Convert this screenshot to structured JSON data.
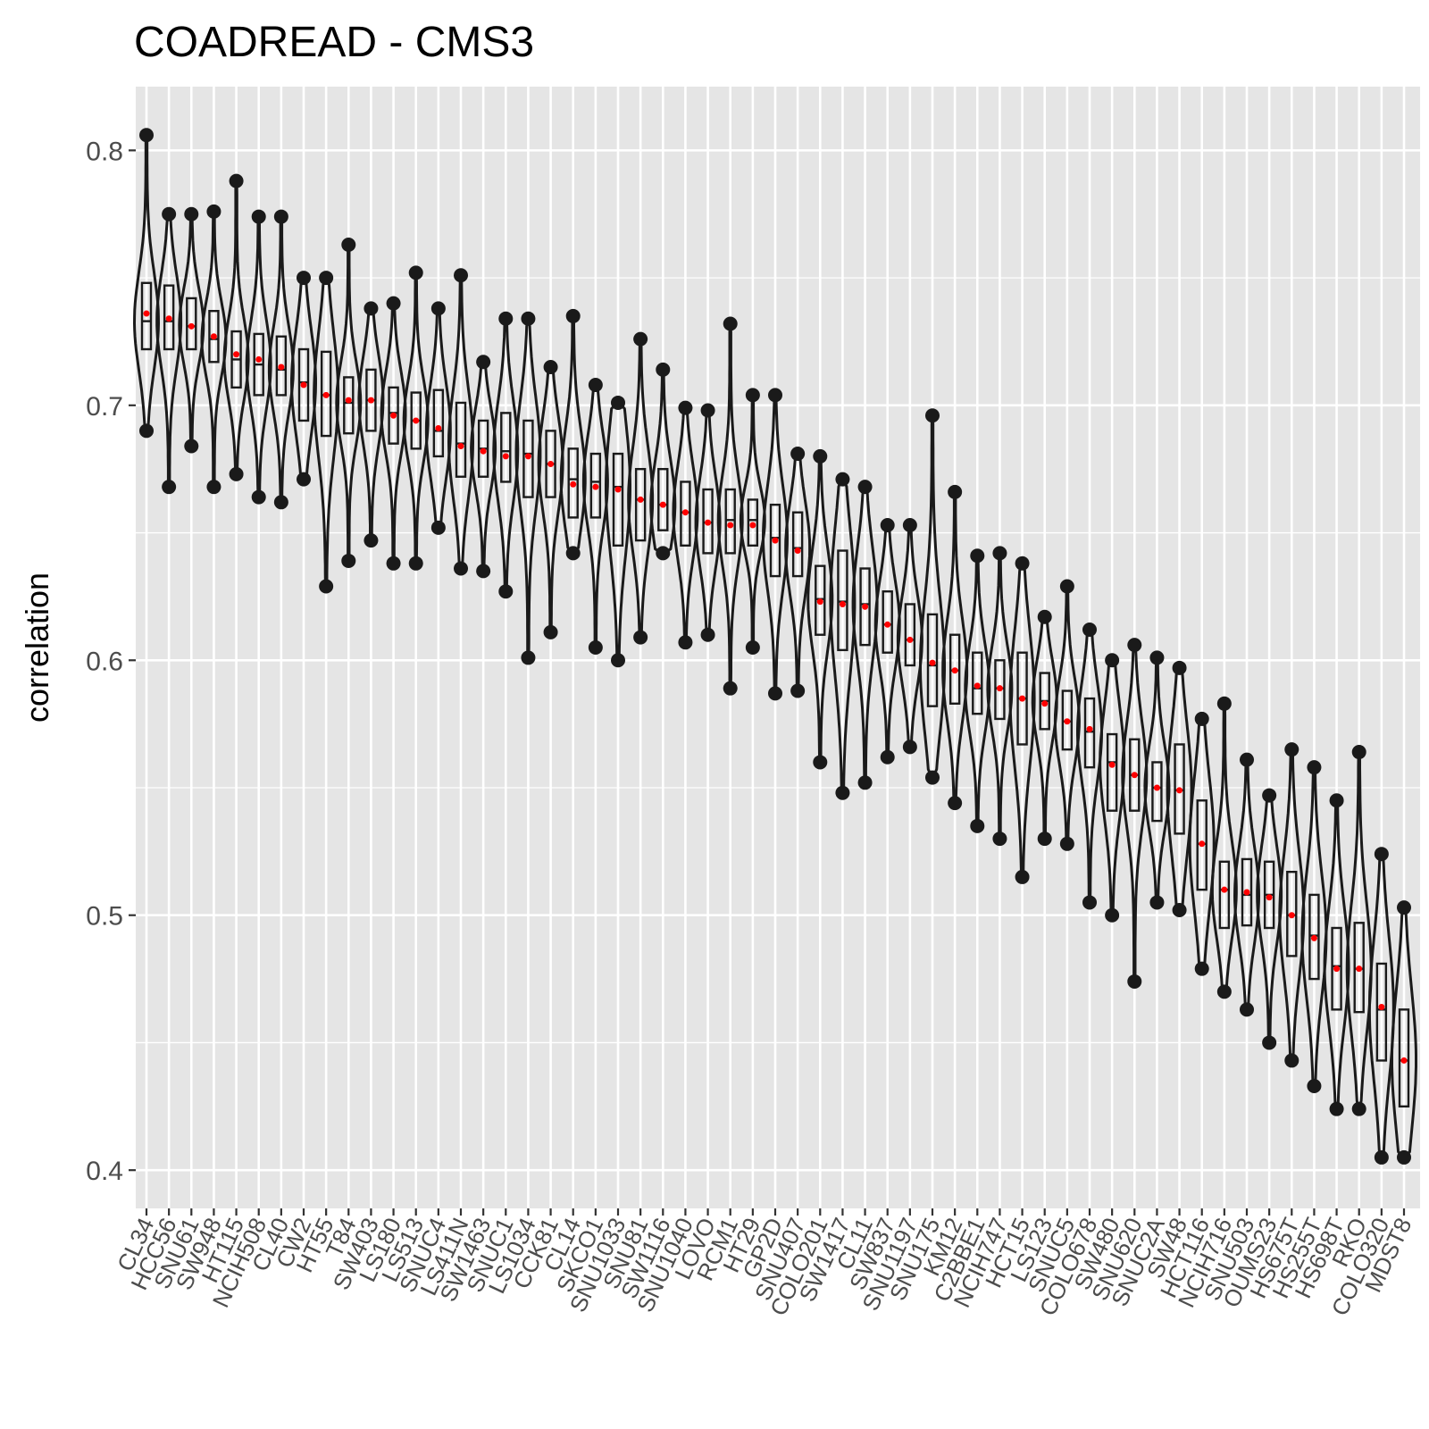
{
  "chart_data": {
    "type": "violin",
    "title": "COADREAD - CMS3",
    "xlabel": "",
    "ylabel": "correlation",
    "ylim": [
      0.385,
      0.825
    ],
    "yticks": [
      0.4,
      0.5,
      0.6,
      0.7,
      0.8
    ],
    "ytick_labels": [
      "0.4",
      "0.5",
      "0.6",
      "0.7",
      "0.8"
    ],
    "grid": true,
    "legend": "none",
    "colors": {
      "panel": "#e5e5e5",
      "grid": "#ffffff",
      "violin": "#1a1a1a",
      "mean": "#ff0000",
      "text": "#4d4d4d"
    },
    "categories": [
      "CL34",
      "HCC56",
      "SNU61",
      "SW948",
      "HT115",
      "NCIH508",
      "CL40",
      "CW2",
      "HT55",
      "T84",
      "SW403",
      "LS180",
      "LS513",
      "SNUC4",
      "LS411N",
      "SW1463",
      "SNUC1",
      "LS1034",
      "CCK81",
      "CL14",
      "SKCO1",
      "SNU1033",
      "SNU81",
      "SW1116",
      "SNU1040",
      "LOVO",
      "RCM1",
      "HT29",
      "GP2D",
      "SNU407",
      "COLO201",
      "SW1417",
      "CL11",
      "SW837",
      "SNU1197",
      "SNU175",
      "KM12",
      "C2BBE1",
      "NCIH747",
      "HCT15",
      "LS123",
      "SNUC5",
      "COLO678",
      "SW480",
      "SNU620",
      "SNUC2A",
      "SW48",
      "HCT116",
      "NCIH716",
      "SNU503",
      "OUMS23",
      "HS675T",
      "HS255T",
      "HS698T",
      "RKO",
      "COLO320",
      "MDST8"
    ],
    "series": [
      {
        "name": "mean",
        "values": [
          0.736,
          0.734,
          0.731,
          0.727,
          0.72,
          0.718,
          0.715,
          0.708,
          0.704,
          0.702,
          0.702,
          0.696,
          0.694,
          0.691,
          0.684,
          0.682,
          0.68,
          0.68,
          0.677,
          0.669,
          0.668,
          0.667,
          0.663,
          0.661,
          0.658,
          0.654,
          0.653,
          0.653,
          0.647,
          0.643,
          0.623,
          0.622,
          0.621,
          0.614,
          0.608,
          0.599,
          0.596,
          0.59,
          0.589,
          0.585,
          0.583,
          0.576,
          0.573,
          0.559,
          0.555,
          0.55,
          0.549,
          0.528,
          0.51,
          0.509,
          0.507,
          0.5,
          0.491,
          0.479,
          0.479,
          0.464,
          0.443
        ]
      },
      {
        "name": "min",
        "values": [
          0.69,
          0.668,
          0.684,
          0.668,
          0.673,
          0.664,
          0.662,
          0.671,
          0.629,
          0.639,
          0.647,
          0.638,
          0.638,
          0.652,
          0.636,
          0.635,
          0.627,
          0.601,
          0.611,
          0.642,
          0.605,
          0.6,
          0.609,
          0.642,
          0.607,
          0.61,
          0.589,
          0.605,
          0.587,
          0.588,
          0.56,
          0.548,
          0.552,
          0.562,
          0.566,
          0.554,
          0.544,
          0.535,
          0.53,
          0.515,
          0.53,
          0.528,
          0.505,
          0.5,
          0.474,
          0.505,
          0.502,
          0.479,
          0.47,
          0.463,
          0.45,
          0.443,
          0.433,
          0.424,
          0.424,
          0.405,
          0.405
        ]
      },
      {
        "name": "max",
        "values": [
          0.806,
          0.775,
          0.775,
          0.776,
          0.788,
          0.774,
          0.774,
          0.75,
          0.75,
          0.763,
          0.738,
          0.74,
          0.752,
          0.738,
          0.751,
          0.717,
          0.734,
          0.734,
          0.715,
          0.735,
          0.708,
          0.701,
          0.726,
          0.714,
          0.699,
          0.698,
          0.732,
          0.704,
          0.704,
          0.681,
          0.68,
          0.671,
          0.668,
          0.653,
          0.653,
          0.696,
          0.666,
          0.641,
          0.642,
          0.638,
          0.617,
          0.629,
          0.612,
          0.6,
          0.606,
          0.601,
          0.597,
          0.577,
          0.583,
          0.561,
          0.547,
          0.565,
          0.558,
          0.545,
          0.564,
          0.524,
          0.503
        ]
      },
      {
        "name": "q1",
        "values": [
          0.722,
          0.722,
          0.722,
          0.717,
          0.707,
          0.704,
          0.704,
          0.694,
          0.688,
          0.689,
          0.69,
          0.685,
          0.683,
          0.68,
          0.672,
          0.672,
          0.67,
          0.664,
          0.664,
          0.656,
          0.656,
          0.645,
          0.647,
          0.651,
          0.645,
          0.642,
          0.642,
          0.645,
          0.633,
          0.633,
          0.61,
          0.604,
          0.606,
          0.603,
          0.598,
          0.582,
          0.583,
          0.579,
          0.577,
          0.567,
          0.573,
          0.565,
          0.558,
          0.541,
          0.541,
          0.537,
          0.532,
          0.51,
          0.495,
          0.496,
          0.495,
          0.484,
          0.475,
          0.463,
          0.462,
          0.443,
          0.425
        ]
      },
      {
        "name": "median",
        "values": [
          0.733,
          0.733,
          0.731,
          0.726,
          0.718,
          0.716,
          0.714,
          0.709,
          0.704,
          0.701,
          0.702,
          0.697,
          0.694,
          0.69,
          0.685,
          0.683,
          0.682,
          0.681,
          0.677,
          0.671,
          0.67,
          0.668,
          0.663,
          0.661,
          0.658,
          0.654,
          0.655,
          0.655,
          0.648,
          0.644,
          0.624,
          0.623,
          0.622,
          0.614,
          0.608,
          0.598,
          0.596,
          0.589,
          0.589,
          0.585,
          0.584,
          0.576,
          0.572,
          0.56,
          0.555,
          0.55,
          0.549,
          0.528,
          0.51,
          0.508,
          0.508,
          0.5,
          0.492,
          0.48,
          0.479,
          0.463,
          0.443
        ]
      },
      {
        "name": "q3",
        "values": [
          0.748,
          0.747,
          0.742,
          0.737,
          0.729,
          0.728,
          0.727,
          0.722,
          0.721,
          0.711,
          0.714,
          0.707,
          0.705,
          0.706,
          0.701,
          0.694,
          0.697,
          0.694,
          0.69,
          0.683,
          0.681,
          0.681,
          0.675,
          0.675,
          0.67,
          0.667,
          0.667,
          0.663,
          0.661,
          0.658,
          0.637,
          0.643,
          0.636,
          0.627,
          0.622,
          0.618,
          0.61,
          0.603,
          0.6,
          0.603,
          0.595,
          0.588,
          0.585,
          0.571,
          0.569,
          0.56,
          0.567,
          0.545,
          0.521,
          0.522,
          0.521,
          0.517,
          0.508,
          0.495,
          0.497,
          0.481,
          0.463
        ]
      }
    ]
  }
}
